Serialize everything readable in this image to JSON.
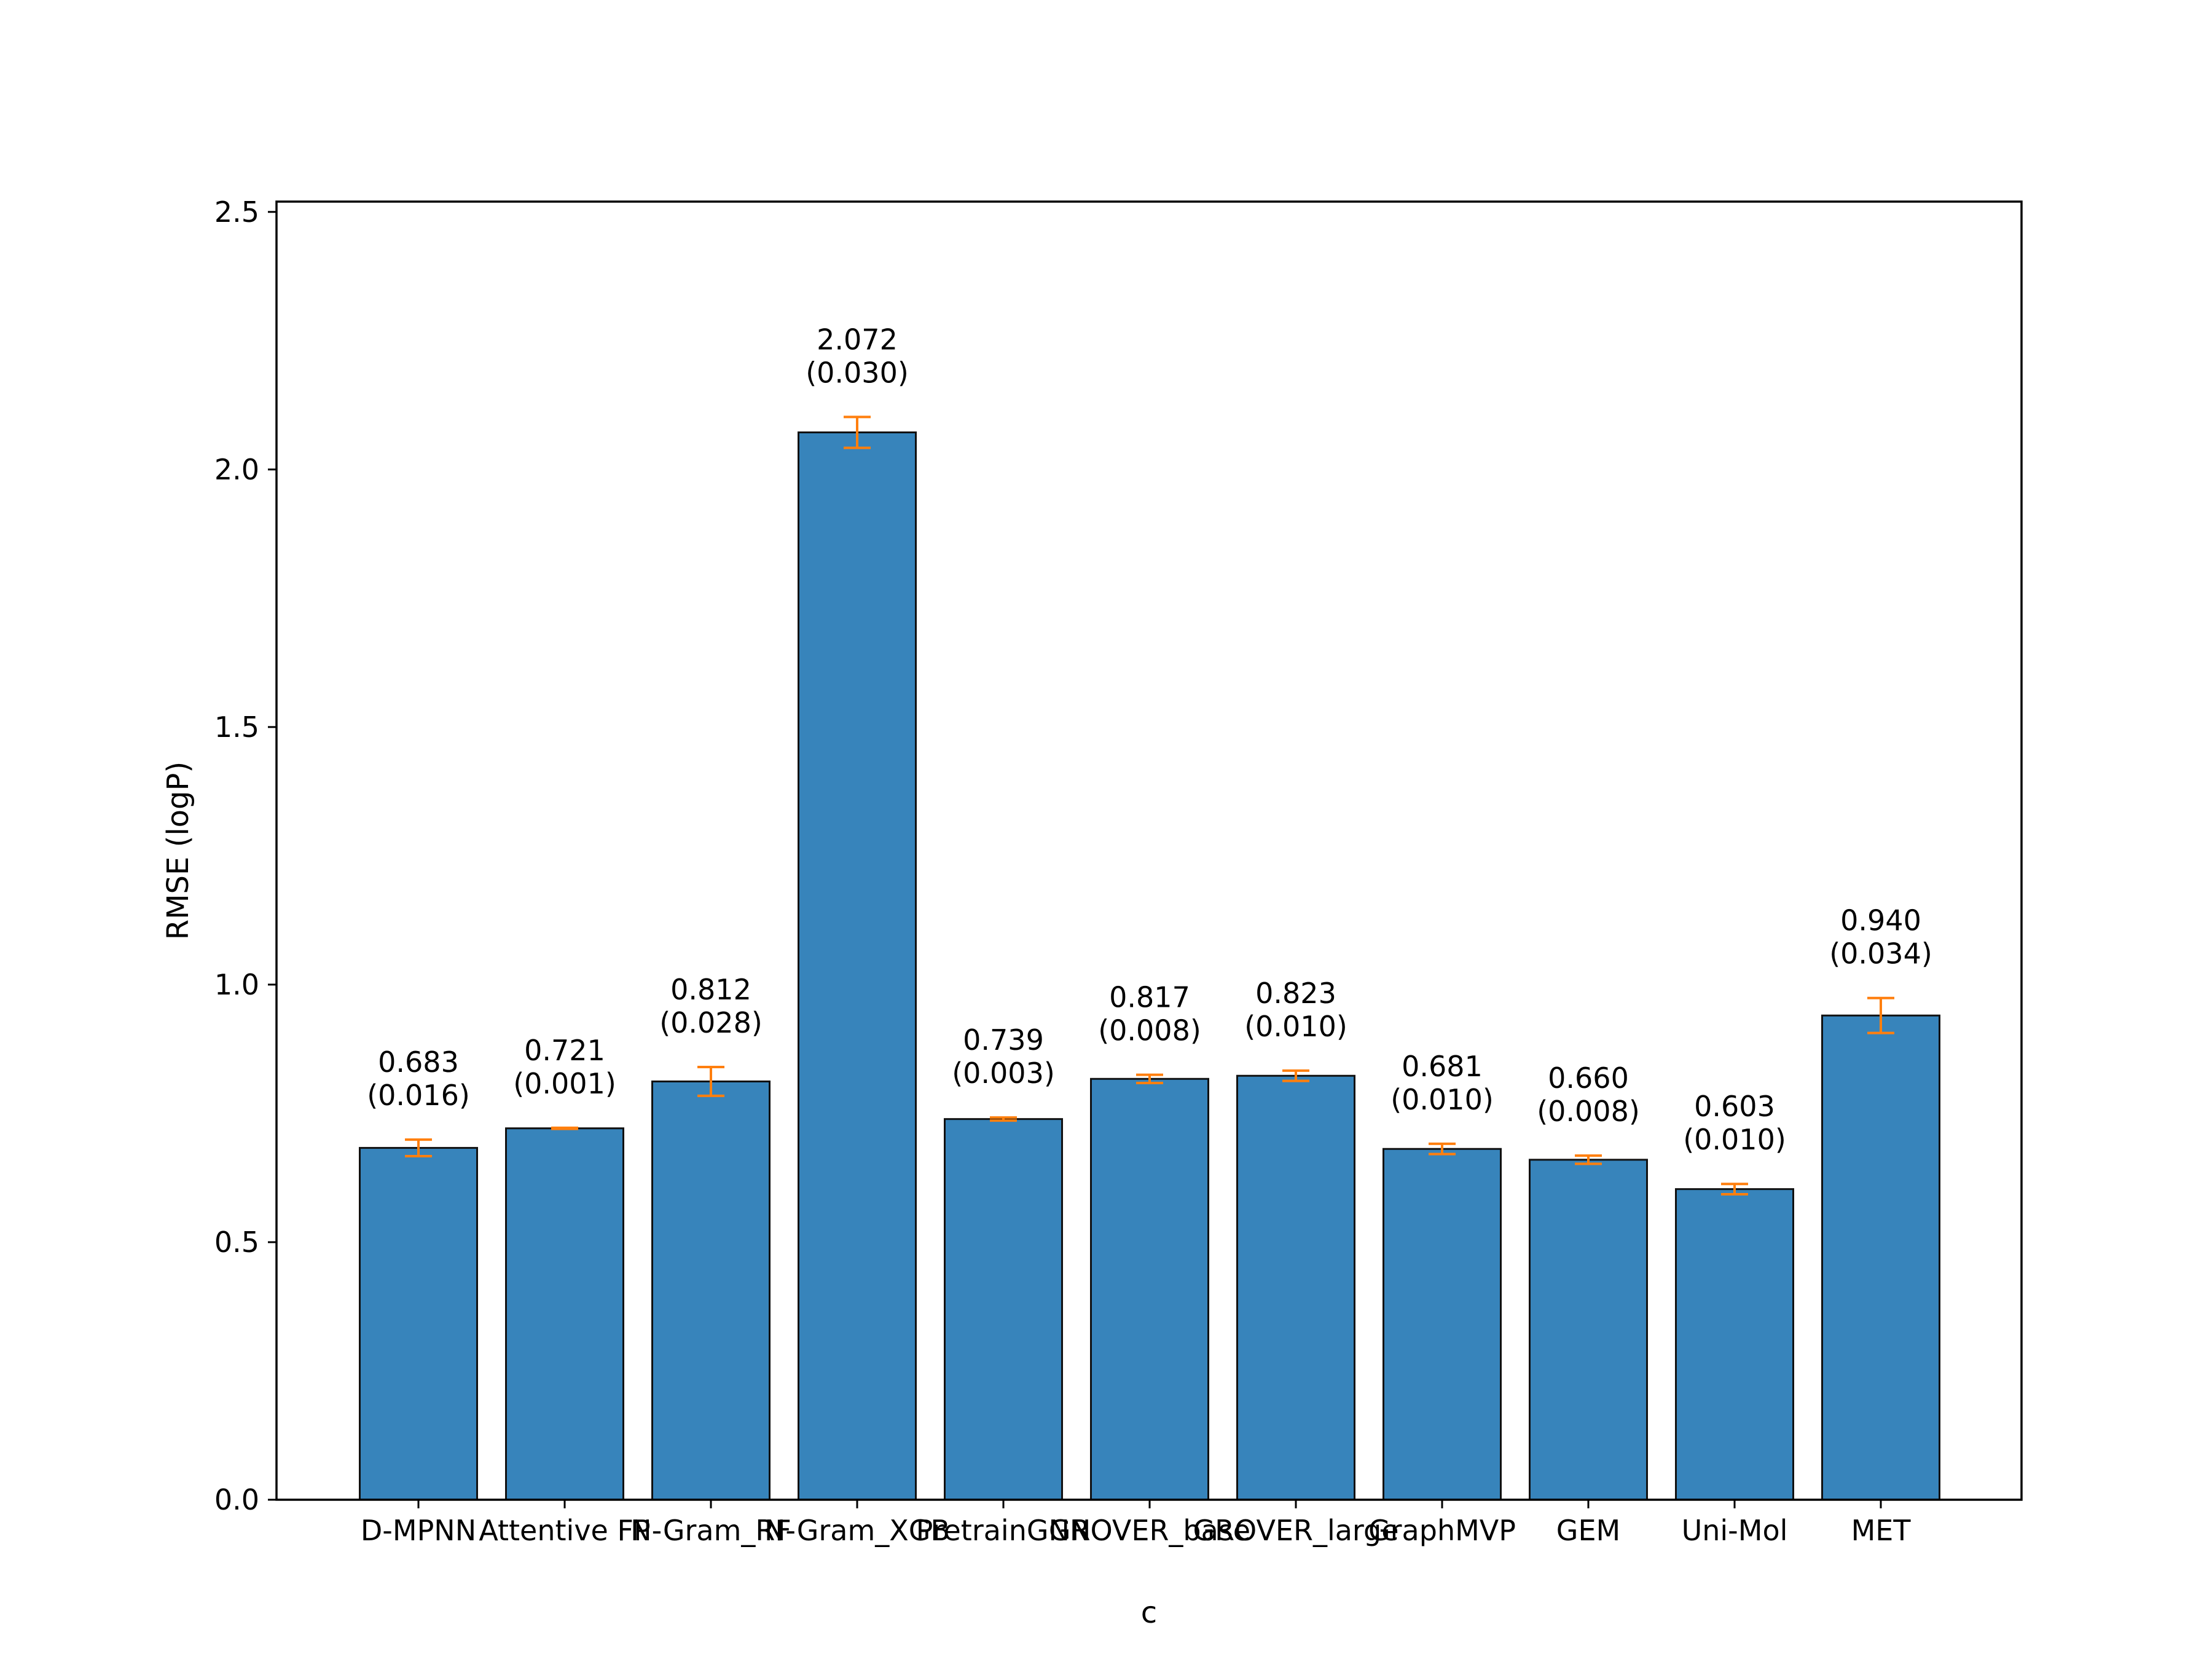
{
  "chart_data": {
    "type": "bar",
    "title": "",
    "xlabel": "c",
    "ylabel": "RMSE (logP)",
    "ylim": [
      0,
      2.52
    ],
    "yticks": [
      0.0,
      0.5,
      1.0,
      1.5,
      2.0,
      2.5
    ],
    "ytick_labels": [
      "0.0",
      "0.5",
      "1.0",
      "1.5",
      "2.0",
      "2.5"
    ],
    "grid": false,
    "categories": [
      "D-MPNN",
      "Attentive FP",
      "N-Gram_RF",
      "N-Gram_XGB",
      "PretrainGNN",
      "GROVER_base",
      "GROVER_large",
      "GraphMVP",
      "GEM",
      "Uni-Mol",
      "MET"
    ],
    "values": [
      0.683,
      0.721,
      0.812,
      2.072,
      0.739,
      0.817,
      0.823,
      0.681,
      0.66,
      0.603,
      0.94
    ],
    "errors": [
      0.016,
      0.001,
      0.028,
      0.03,
      0.003,
      0.008,
      0.01,
      0.01,
      0.008,
      0.01,
      0.034
    ],
    "value_labels": [
      "0.683",
      "0.721",
      "0.812",
      "2.072",
      "0.739",
      "0.817",
      "0.823",
      "0.681",
      "0.660",
      "0.603",
      "0.940"
    ],
    "error_labels": [
      "(0.016)",
      "(0.001)",
      "(0.028)",
      "(0.030)",
      "(0.003)",
      "(0.008)",
      "(0.010)",
      "(0.010)",
      "(0.008)",
      "(0.010)",
      "(0.034)"
    ],
    "colors": {
      "bar": "#3784bb",
      "bar_edge": "#111111",
      "error_bar": "#ff7f0e",
      "axis": "#000000"
    }
  }
}
